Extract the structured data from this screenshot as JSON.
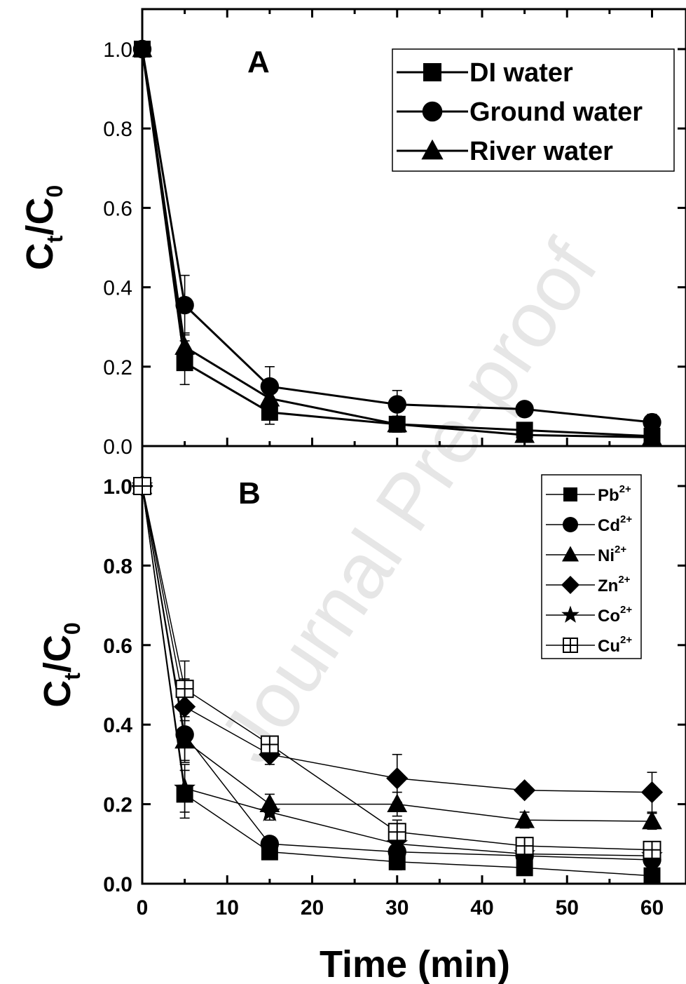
{
  "watermark": "Journal Pre-proof",
  "x_axis_label": "Time (min)",
  "chart_data": [
    {
      "type": "line",
      "panel_label": "A",
      "ylabel_main": "C",
      "ylabel_sub1": "t",
      "ylabel_slash": "/C",
      "ylabel_sub2": "0",
      "xlim": [
        0,
        64
      ],
      "ylim": [
        0,
        1.0
      ],
      "x_ticks": [
        0,
        10,
        20,
        30,
        40,
        50,
        60
      ],
      "y_ticks": [
        "0.0",
        "0.2",
        "0.4",
        "0.6",
        "0.8",
        "1.0"
      ],
      "legend_position": "top-right",
      "x": [
        0,
        5,
        15,
        30,
        45,
        60
      ],
      "series": [
        {
          "name": "DI water",
          "marker": "square",
          "values": [
            1.0,
            0.21,
            0.085,
            0.055,
            0.04,
            0.025
          ],
          "errors": [
            0,
            0.055,
            0.03,
            0.02,
            0.015,
            0.01
          ]
        },
        {
          "name": "Ground water",
          "marker": "circle",
          "values": [
            1.0,
            0.355,
            0.15,
            0.105,
            0.093,
            0.06
          ],
          "errors": [
            0,
            0.075,
            0.05,
            0.035,
            0.015,
            0.02
          ]
        },
        {
          "name": "River water",
          "marker": "triangle",
          "values": [
            1.0,
            0.25,
            0.12,
            0.055,
            0.028,
            0.022
          ],
          "errors": [
            0,
            0.035,
            0.03,
            0.02,
            0.01,
            0.01
          ]
        }
      ]
    },
    {
      "type": "line",
      "panel_label": "B",
      "ylabel_main": "C",
      "ylabel_sub1": "t",
      "ylabel_slash": "/C",
      "ylabel_sub2": "0",
      "xlim": [
        0,
        64
      ],
      "ylim": [
        0,
        1.0
      ],
      "x_ticks": [
        0,
        10,
        20,
        30,
        40,
        50,
        60
      ],
      "y_ticks": [
        "0.0",
        "0.2",
        "0.4",
        "0.6",
        "0.8",
        "1.0"
      ],
      "legend_position": "top-right",
      "x": [
        0,
        5,
        15,
        30,
        45,
        60
      ],
      "series": [
        {
          "name": "Pb",
          "charge": "2+",
          "marker": "square",
          "values": [
            1.0,
            0.225,
            0.08,
            0.055,
            0.04,
            0.02
          ],
          "errors": [
            0,
            0.06,
            0.015,
            0.02,
            0.01,
            0.01
          ]
        },
        {
          "name": "Cd",
          "charge": "2+",
          "marker": "circle",
          "values": [
            1.0,
            0.375,
            0.1,
            0.08,
            0.07,
            0.06
          ],
          "errors": [
            0,
            0.07,
            0.015,
            0.02,
            0.01,
            0.01
          ]
        },
        {
          "name": "Ni",
          "charge": "2+",
          "marker": "triangle",
          "values": [
            1.0,
            0.36,
            0.2,
            0.2,
            0.16,
            0.157
          ],
          "errors": [
            0,
            0.05,
            0.025,
            0.03,
            0.02,
            0.02
          ]
        },
        {
          "name": "Zn",
          "charge": "2+",
          "marker": "diamond",
          "values": [
            1.0,
            0.445,
            0.325,
            0.265,
            0.235,
            0.23
          ],
          "errors": [
            0,
            0.07,
            0.025,
            0.06,
            0.015,
            0.05
          ]
        },
        {
          "name": "Co",
          "charge": "2+",
          "marker": "star",
          "values": [
            1.0,
            0.24,
            0.18,
            0.1,
            0.075,
            0.07
          ],
          "errors": [
            0,
            0.06,
            0.02,
            0.02,
            0.01,
            0.01
          ]
        },
        {
          "name": "Cu",
          "charge": "2+",
          "marker": "square-cross",
          "values": [
            1.0,
            0.49,
            0.35,
            0.13,
            0.095,
            0.085
          ],
          "errors": [
            0,
            0.07,
            0.015,
            0.03,
            0.02,
            0.02
          ]
        }
      ]
    }
  ]
}
